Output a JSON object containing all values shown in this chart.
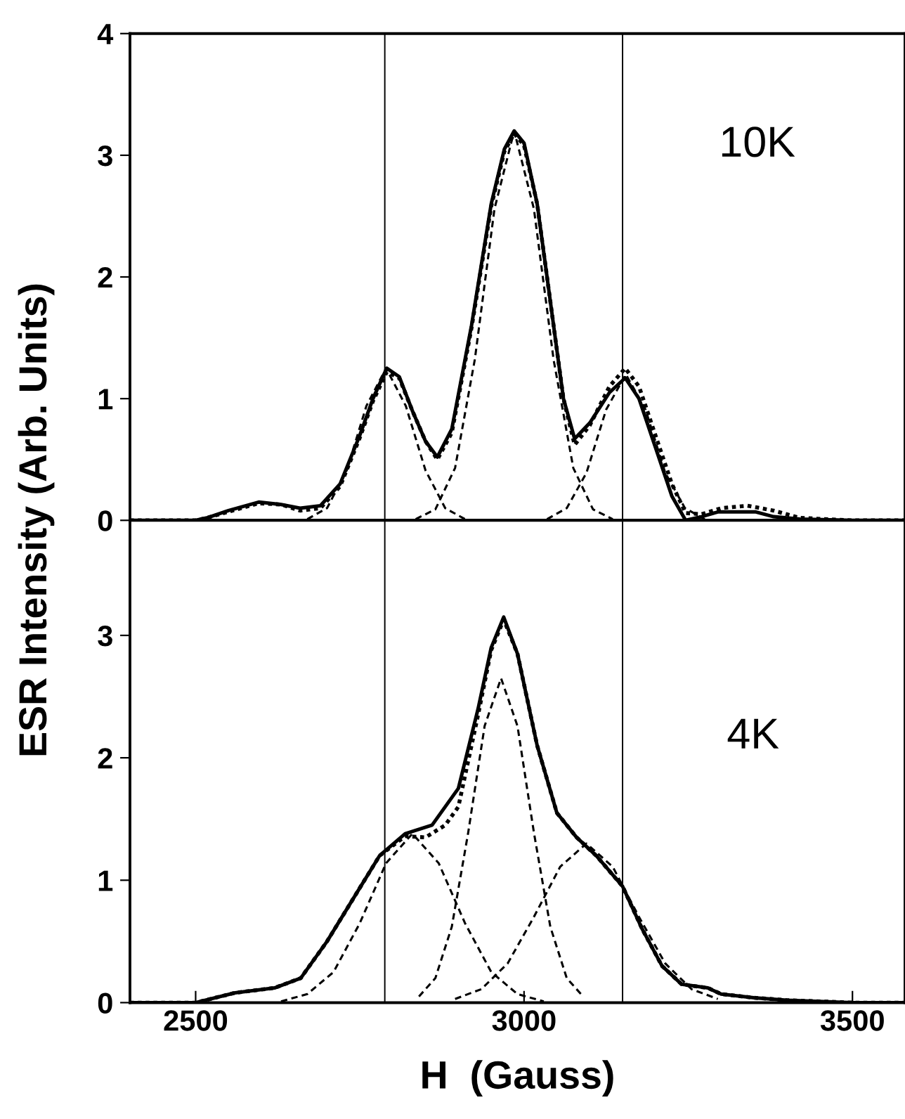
{
  "chart_data": [
    {
      "type": "line",
      "xlim": [
        2400,
        3580
      ],
      "ylim": [
        0,
        4
      ],
      "yticks": [
        0,
        1,
        2,
        3,
        4
      ],
      "tick_labels": "y",
      "ylabel": "ESR Intensity (Arb. Units)",
      "annotations": [
        "10K"
      ],
      "ref_lines": [
        {
          "axis": "x",
          "value": 2788,
          "color": "#000000"
        },
        {
          "axis": "x",
          "value": 3150,
          "color": "#000000"
        }
      ],
      "series": [
        {
          "color": "#000000",
          "line_style": "solid",
          "x": [
            2400,
            2500,
            2517,
            2550,
            2596,
            2630,
            2659,
            2690,
            2720,
            2750,
            2770,
            2791,
            2810,
            2830,
            2850,
            2868,
            2890,
            2920,
            2950,
            2970,
            2985,
            3000,
            3020,
            3040,
            3060,
            3077,
            3100,
            3130,
            3154,
            3175,
            3200,
            3225,
            3246,
            3270,
            3296,
            3352,
            3380,
            3420,
            3500,
            3580
          ],
          "values": [
            0,
            0,
            0.02,
            0.08,
            0.15,
            0.13,
            0.1,
            0.12,
            0.3,
            0.7,
            1.0,
            1.25,
            1.18,
            0.9,
            0.65,
            0.52,
            0.75,
            1.6,
            2.6,
            3.05,
            3.2,
            3.1,
            2.6,
            1.8,
            1.0,
            0.67,
            0.8,
            1.05,
            1.17,
            1.0,
            0.6,
            0.2,
            0.0,
            0.03,
            0.07,
            0.07,
            0.03,
            0.01,
            0,
            0
          ]
        },
        {
          "color": "#000000",
          "line_style": "dotted",
          "x": [
            2400,
            2500,
            2517,
            2550,
            2596,
            2630,
            2659,
            2690,
            2720,
            2750,
            2770,
            2791,
            2810,
            2830,
            2850,
            2868,
            2890,
            2920,
            2950,
            2970,
            2985,
            3000,
            3020,
            3040,
            3060,
            3077,
            3100,
            3130,
            3154,
            3175,
            3200,
            3225,
            3246,
            3270,
            3300,
            3340,
            3380,
            3420,
            3500,
            3580
          ],
          "values": [
            0,
            0,
            0.02,
            0.07,
            0.14,
            0.13,
            0.08,
            0.1,
            0.28,
            0.68,
            0.98,
            1.22,
            1.17,
            0.9,
            0.65,
            0.5,
            0.72,
            1.58,
            2.58,
            3.03,
            3.18,
            3.08,
            2.6,
            1.8,
            1.0,
            0.62,
            0.78,
            1.1,
            1.25,
            1.1,
            0.7,
            0.3,
            0.06,
            0.05,
            0.1,
            0.12,
            0.08,
            0.02,
            0,
            0
          ]
        },
        {
          "color": "#000000",
          "line_style": "dashed",
          "x": [
            2670,
            2700,
            2730,
            2760,
            2790,
            2820,
            2850,
            2880,
            2910
          ],
          "values": [
            0.01,
            0.1,
            0.41,
            0.94,
            1.25,
            0.94,
            0.41,
            0.1,
            0.01
          ]
        },
        {
          "color": "#000000",
          "line_style": "dashed",
          "x": [
            2835,
            2865,
            2895,
            2925,
            2955,
            2985,
            3015,
            3045,
            3075,
            3105,
            3135
          ],
          "values": [
            0.01,
            0.09,
            0.43,
            1.32,
            2.56,
            3.2,
            2.56,
            1.32,
            0.43,
            0.09,
            0.01
          ]
        },
        {
          "color": "#000000",
          "line_style": "dashed",
          "x": [
            3035,
            3065,
            3095,
            3125,
            3155,
            3185,
            3215,
            3245,
            3275
          ],
          "values": [
            0.01,
            0.1,
            0.39,
            0.91,
            1.2,
            0.91,
            0.39,
            0.1,
            0.01
          ]
        }
      ]
    },
    {
      "type": "line",
      "xlim": [
        2400,
        3580
      ],
      "ylim": [
        0,
        3.94
      ],
      "xticks": [
        2500,
        3000,
        3500
      ],
      "yticks": [
        0,
        1,
        2,
        3
      ],
      "xlabel": "H  (Gauss)",
      "annotations": [
        "4K"
      ],
      "ref_lines": [
        {
          "axis": "x",
          "value": 2788,
          "color": "#000000"
        },
        {
          "axis": "x",
          "value": 3150,
          "color": "#000000"
        }
      ],
      "series": [
        {
          "color": "#000000",
          "line_style": "solid",
          "x": [
            2400,
            2500,
            2560,
            2620,
            2660,
            2700,
            2740,
            2780,
            2819,
            2860,
            2900,
            2930,
            2950,
            2969,
            2990,
            3020,
            3050,
            3080,
            3110,
            3150,
            3180,
            3210,
            3240,
            3280,
            3300,
            3350,
            3400,
            3500,
            3580
          ],
          "values": [
            0,
            0,
            0.08,
            0.12,
            0.2,
            0.5,
            0.85,
            1.2,
            1.38,
            1.45,
            1.75,
            2.4,
            2.9,
            3.15,
            2.85,
            2.1,
            1.55,
            1.35,
            1.2,
            0.95,
            0.6,
            0.3,
            0.15,
            0.12,
            0.07,
            0.04,
            0.02,
            0,
            0
          ]
        },
        {
          "color": "#000000",
          "line_style": "dotted",
          "x": [
            2400,
            2500,
            2560,
            2620,
            2660,
            2700,
            2740,
            2780,
            2819,
            2850,
            2880,
            2900,
            2930,
            2950,
            2969,
            2990,
            3020,
            3050,
            3080,
            3110,
            3150,
            3180,
            3210,
            3240,
            3280,
            3300,
            3350,
            3400,
            3500,
            3580
          ],
          "values": [
            0,
            0,
            0.08,
            0.12,
            0.2,
            0.5,
            0.85,
            1.2,
            1.36,
            1.35,
            1.45,
            1.6,
            2.35,
            2.88,
            3.13,
            2.85,
            2.1,
            1.55,
            1.35,
            1.2,
            0.95,
            0.6,
            0.3,
            0.15,
            0.12,
            0.07,
            0.04,
            0.02,
            0,
            0
          ]
        },
        {
          "color": "#000000",
          "line_style": "dashed",
          "x": [
            2630,
            2670,
            2710,
            2750,
            2790,
            2830,
            2870,
            2910,
            2950,
            2990,
            3030
          ],
          "values": [
            0.01,
            0.07,
            0.25,
            0.65,
            1.14,
            1.38,
            1.14,
            0.65,
            0.25,
            0.07,
            0.01
          ]
        },
        {
          "color": "#000000",
          "line_style": "dashed",
          "x": [
            2840,
            2865,
            2890,
            2915,
            2940,
            2965,
            2990,
            3015,
            3040,
            3065,
            3090
          ],
          "values": [
            0.05,
            0.2,
            0.62,
            1.39,
            2.26,
            2.65,
            2.26,
            1.39,
            0.62,
            0.2,
            0.05
          ]
        },
        {
          "color": "#000000",
          "line_style": "dashed",
          "x": [
            2895,
            2935,
            2975,
            3015,
            3055,
            3095,
            3135,
            3175,
            3215,
            3255,
            3295
          ],
          "values": [
            0.03,
            0.11,
            0.32,
            0.7,
            1.11,
            1.3,
            1.11,
            0.7,
            0.32,
            0.11,
            0.03
          ]
        }
      ]
    }
  ]
}
